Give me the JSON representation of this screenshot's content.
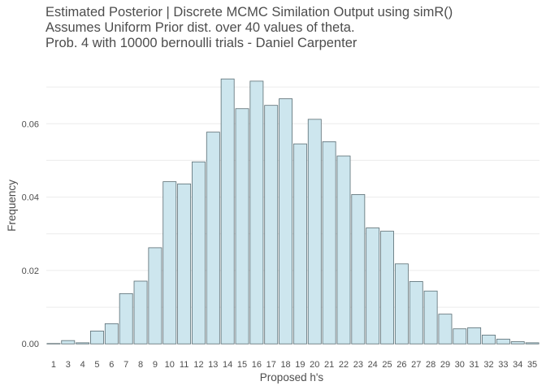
{
  "chart_data": {
    "type": "bar",
    "title_lines": [
      "Estimated Posterior | Discrete MCMC Similation Output using simR()",
      "Assumes Uniform Prior dist. over  40  values of theta.",
      "Prob.  4 with 10000 bernoulli trials - Daniel Carpenter"
    ],
    "xlabel": "Proposed h's",
    "ylabel": "Frequency",
    "categories": [
      "1",
      "3",
      "4",
      "5",
      "6",
      "7",
      "8",
      "9",
      "10",
      "11",
      "12",
      "13",
      "14",
      "15",
      "16",
      "17",
      "18",
      "19",
      "20",
      "21",
      "22",
      "23",
      "24",
      "25",
      "26",
      "27",
      "28",
      "29",
      "30",
      "31",
      "32",
      "33",
      "34",
      "35"
    ],
    "values": [
      0.0001,
      0.0009,
      0.0003,
      0.0035,
      0.0055,
      0.0137,
      0.0171,
      0.0262,
      0.0442,
      0.0436,
      0.0496,
      0.0577,
      0.0722,
      0.0641,
      0.0716,
      0.065,
      0.0668,
      0.0545,
      0.0612,
      0.0551,
      0.0512,
      0.0407,
      0.0316,
      0.0307,
      0.0218,
      0.017,
      0.0144,
      0.0081,
      0.0041,
      0.0044,
      0.0024,
      0.0013,
      0.0006,
      0.0003
    ],
    "yticks": [
      0.0,
      0.02,
      0.04,
      0.06
    ],
    "ytick_labels": [
      "0.00",
      "0.02",
      "0.04",
      "0.06"
    ],
    "ylim": [
      -0.0015,
      0.076
    ],
    "grid": true,
    "bar_fill": "#cde6ee",
    "bar_stroke": "#5a6d73"
  }
}
